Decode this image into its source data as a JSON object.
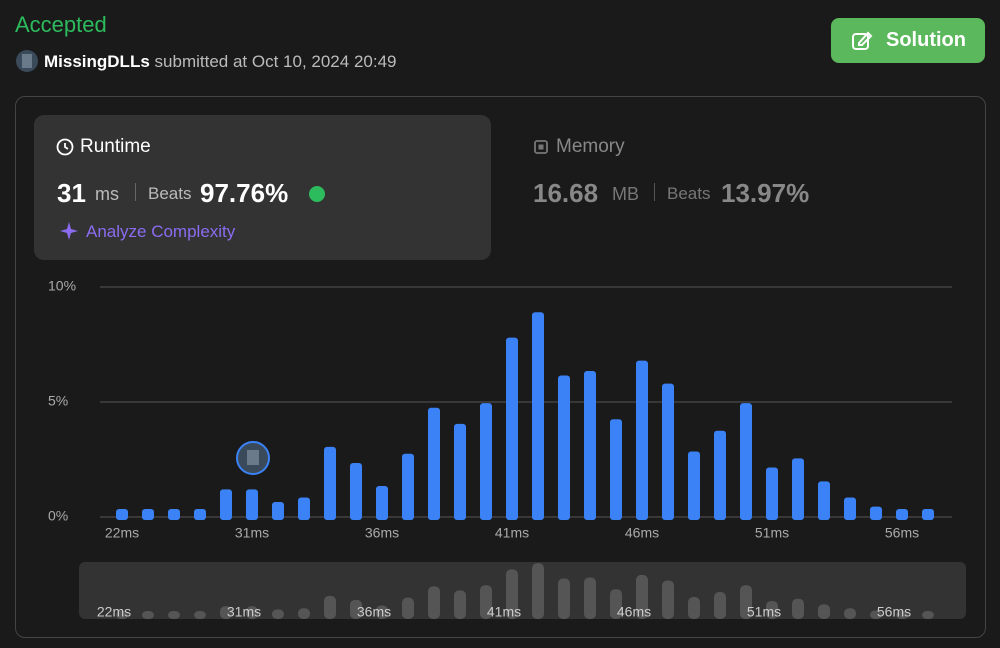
{
  "header": {
    "status": "Accepted",
    "user": "MissingDLLs",
    "submitted": "submitted at",
    "date": "Oct 10, 2024 20:49",
    "button": "Solution"
  },
  "runtime": {
    "title": "Runtime",
    "value": "31",
    "unit": "ms",
    "beats_label": "Beats",
    "beats": "97.76%",
    "analyze": "Analyze Complexity"
  },
  "memory": {
    "title": "Memory",
    "value": "16.68",
    "unit": "MB",
    "beats_label": "Beats",
    "beats": "13.97%"
  },
  "chart_data": {
    "type": "bar",
    "categories": [
      "22ms",
      null,
      null,
      null,
      null,
      "31ms",
      null,
      null,
      null,
      null,
      "36ms",
      null,
      null,
      null,
      null,
      "41ms",
      null,
      null,
      null,
      null,
      "46ms",
      null,
      null,
      null,
      null,
      "51ms",
      null,
      null,
      null,
      null,
      "56ms",
      null
    ],
    "values": [
      0.35,
      0.35,
      0.35,
      0.35,
      1.2,
      1.2,
      0.65,
      0.85,
      3.05,
      2.35,
      1.35,
      2.75,
      4.75,
      4.05,
      4.95,
      7.8,
      8.9,
      6.15,
      6.35,
      4.25,
      6.8,
      5.8,
      2.85,
      3.75,
      4.95,
      2.15,
      2.55,
      1.55,
      0.85,
      0.45,
      0.35,
      0.35
    ],
    "color": "#3b82f6",
    "ylim": [
      0,
      10
    ],
    "yticks": [
      {
        "value": 0,
        "label": "0%"
      },
      {
        "value": 5,
        "label": "5%"
      },
      {
        "value": 10,
        "label": "10%"
      }
    ],
    "grid": true
  }
}
